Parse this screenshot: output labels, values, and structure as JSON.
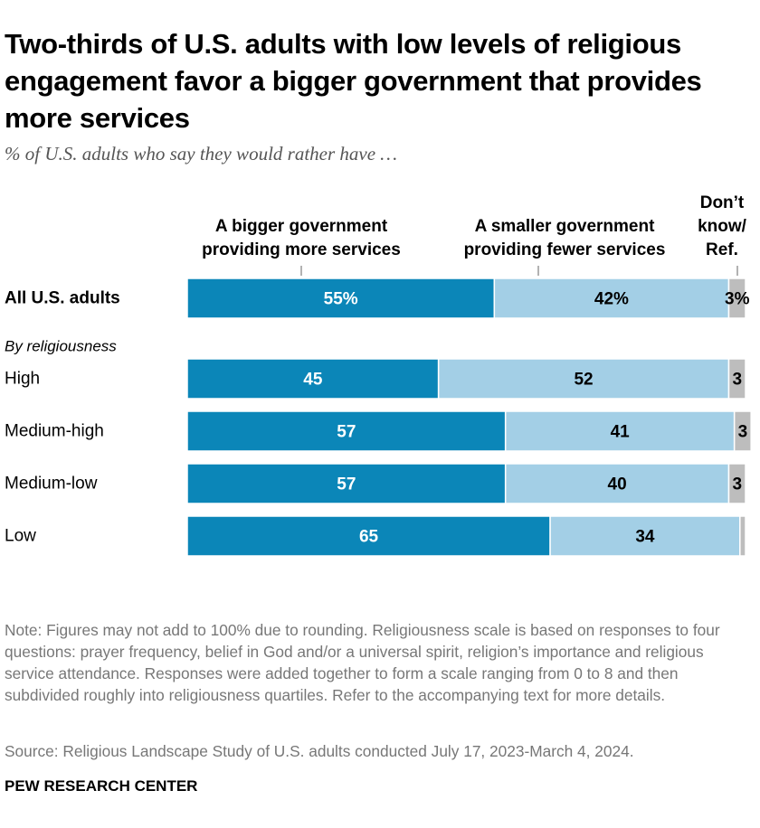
{
  "chart_data": {
    "type": "bar",
    "orientation": "horizontal",
    "stacked": true,
    "title": "Two-thirds of U.S. adults with low levels of religious engagement favor a bigger government that provides more services",
    "subtitle": "% of U.S. adults who say they would rather have …",
    "categories": [
      "All U.S. adults",
      "High",
      "Medium-high",
      "Medium-low",
      "Low"
    ],
    "group_label": "By religiousness",
    "xlim": [
      0,
      100
    ],
    "series": [
      {
        "name": "A bigger government providing more services",
        "color": "#0b86b8",
        "label_color": "#ffffff",
        "values": [
          55,
          45,
          57,
          57,
          65
        ],
        "value_labels": [
          "55%",
          "45",
          "57",
          "57",
          "65"
        ]
      },
      {
        "name": "A smaller government providing fewer services",
        "color": "#a3cfe6",
        "label_color": "#000000",
        "values": [
          42,
          52,
          41,
          40,
          34
        ],
        "value_labels": [
          "42%",
          "52",
          "41",
          "40",
          "34"
        ]
      },
      {
        "name": "Don’t know/ Ref.",
        "color": "#bdbdbd",
        "label_color": "#000000",
        "values": [
          3,
          3,
          3,
          3,
          1
        ],
        "value_labels": [
          "3%",
          "3",
          "3",
          "3",
          null
        ]
      }
    ],
    "note": "Note: Figures may not add to 100% due to rounding. Religiousness scale is based on responses to four questions: prayer frequency, belief in God and/or a universal spirit, religion’s importance and religious service attendance. Responses were added together to form a scale ranging from 0 to 8 and then subdivided roughly into religiousness quartiles. Refer to the accompanying text for more details.",
    "source": "Source: Religious Landscape Study of U.S. adults conducted July 17, 2023-March 4, 2024.",
    "credit": "PEW RESEARCH CENTER"
  }
}
